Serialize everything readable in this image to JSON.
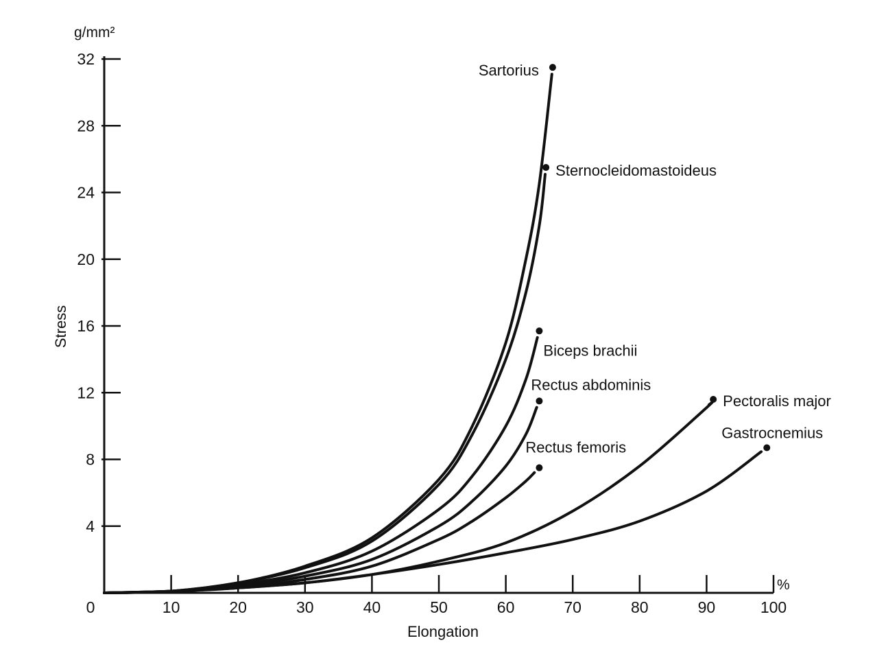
{
  "chart_data": {
    "type": "line",
    "xlabel": "Elongation",
    "ylabel": "Stress",
    "x_unit": "%",
    "y_unit": "g/mm²",
    "xlim": [
      0,
      100
    ],
    "ylim": [
      0,
      32
    ],
    "x_ticks": [
      "0",
      "10",
      "20",
      "30",
      "40",
      "50",
      "60",
      "70",
      "80",
      "90",
      "100"
    ],
    "y_ticks": [
      "4",
      "8",
      "12",
      "16",
      "20",
      "24",
      "28",
      "32"
    ],
    "grid": false,
    "legend": "none",
    "series": [
      {
        "name": "Sartorius",
        "x": [
          0,
          10,
          20,
          30,
          40,
          50,
          55,
          60,
          63,
          65,
          67
        ],
        "y": [
          0,
          0.1,
          0.6,
          1.6,
          3.3,
          6.8,
          10,
          15,
          20,
          24.5,
          31.5
        ]
      },
      {
        "name": "Sternocleidomastoideus",
        "x": [
          0,
          10,
          20,
          30,
          40,
          50,
          55,
          60,
          63,
          65,
          66
        ],
        "y": [
          0,
          0.1,
          0.6,
          1.5,
          3.1,
          6.5,
          9.5,
          14,
          18,
          22,
          25.5
        ]
      },
      {
        "name": "Biceps brachii",
        "x": [
          0,
          10,
          20,
          30,
          40,
          50,
          55,
          60,
          63,
          65
        ],
        "y": [
          0,
          0.1,
          0.5,
          1.2,
          2.5,
          5,
          7,
          10,
          12.8,
          15.7
        ]
      },
      {
        "name": "Rectus abdominis",
        "x": [
          0,
          10,
          20,
          30,
          40,
          50,
          55,
          60,
          63,
          65
        ],
        "y": [
          0,
          0.1,
          0.4,
          1,
          2,
          4,
          5.5,
          7.6,
          9.5,
          11.5
        ]
      },
      {
        "name": "Rectus femoris",
        "x": [
          0,
          10,
          20,
          30,
          40,
          50,
          55,
          60,
          63,
          65
        ],
        "y": [
          0,
          0.1,
          0.3,
          0.8,
          1.6,
          3.2,
          4.3,
          5.7,
          6.7,
          7.5
        ]
      },
      {
        "name": "Pectoralis major",
        "x": [
          0,
          10,
          20,
          30,
          40,
          50,
          60,
          70,
          80,
          90,
          91
        ],
        "y": [
          0,
          0.1,
          0.3,
          0.6,
          1.1,
          1.9,
          3,
          4.9,
          7.6,
          11.1,
          11.6
        ]
      },
      {
        "name": "Gastrocnemius",
        "x": [
          0,
          10,
          20,
          30,
          40,
          50,
          60,
          70,
          80,
          90,
          99
        ],
        "y": [
          0,
          0.1,
          0.3,
          0.6,
          1.1,
          1.7,
          2.4,
          3.2,
          4.3,
          6.1,
          8.7
        ]
      }
    ]
  }
}
